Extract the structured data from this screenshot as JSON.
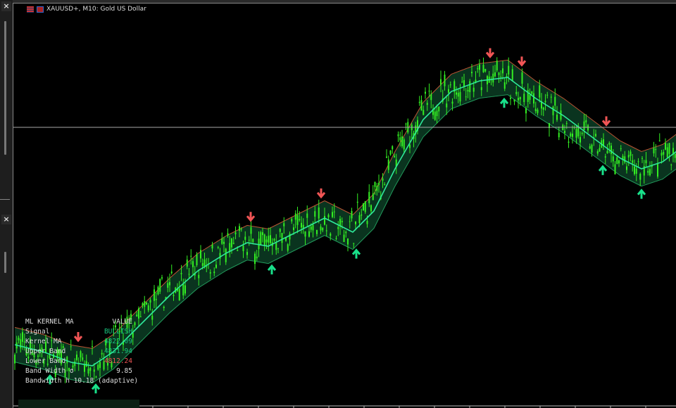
{
  "window": {
    "symbol_title": "XAUUSD+, M10:  Gold US Dollar",
    "close_label": "×"
  },
  "colors": {
    "background": "#000000",
    "candle": "#33ee22",
    "band_fill": "#0b3a22",
    "kernel": "#2ee89a",
    "band_edge_down": "#e8603c",
    "band_edge_up": "#2ecf7a",
    "arrow_up": "#19e08a",
    "arrow_down": "#f05555",
    "crosshair": "#aaaaaa"
  },
  "panel": {
    "header_name": "ML KERNEL MA",
    "header_value": "VALUE",
    "rows": [
      {
        "label": "Signal",
        "value": "BULLISH",
        "color": "#19c880"
      },
      {
        "label": "Kernel MA",
        "value": "4822.09",
        "color": "#19c880"
      },
      {
        "label": "Upper Band",
        "value": "4831.94",
        "color": "#19c880"
      },
      {
        "label": "Lower Band",
        "value": "4812.24",
        "color": "#f05555"
      },
      {
        "label": "Band Width σ",
        "value": "9.85",
        "color": "#dddddd"
      }
    ],
    "footer": "Bandwidth h 10.18 (adaptive)"
  },
  "chart_data": {
    "type": "candlestick",
    "band_halfwidth": 9.85,
    "crosshair_price": 4839.6,
    "kernel": {
      "bars": [
        4,
        12,
        20,
        26,
        32,
        40,
        48,
        56,
        64,
        70,
        76,
        84,
        92,
        100,
        106,
        112,
        120,
        128,
        136,
        144,
        152,
        160,
        168,
        176,
        182,
        188,
        192
      ],
      "prices": [
        4716,
        4712,
        4706,
        4704,
        4712,
        4728,
        4744,
        4758,
        4768,
        4774,
        4772,
        4780,
        4788,
        4780,
        4792,
        4816,
        4844,
        4860,
        4866,
        4868,
        4856,
        4846,
        4834,
        4822,
        4816,
        4820,
        4826
      ]
    },
    "signals": [
      {
        "bar": 22,
        "type": "down"
      },
      {
        "bar": 71,
        "type": "down"
      },
      {
        "bar": 91,
        "type": "down"
      },
      {
        "bar": 139,
        "type": "down"
      },
      {
        "bar": 148,
        "type": "down"
      },
      {
        "bar": 172,
        "type": "down"
      },
      {
        "bar": 14,
        "type": "up"
      },
      {
        "bar": 27,
        "type": "up"
      },
      {
        "bar": 77,
        "type": "up"
      },
      {
        "bar": 101,
        "type": "up"
      },
      {
        "bar": 143,
        "type": "up"
      },
      {
        "bar": 171,
        "type": "up"
      },
      {
        "bar": 182,
        "type": "up"
      }
    ]
  }
}
